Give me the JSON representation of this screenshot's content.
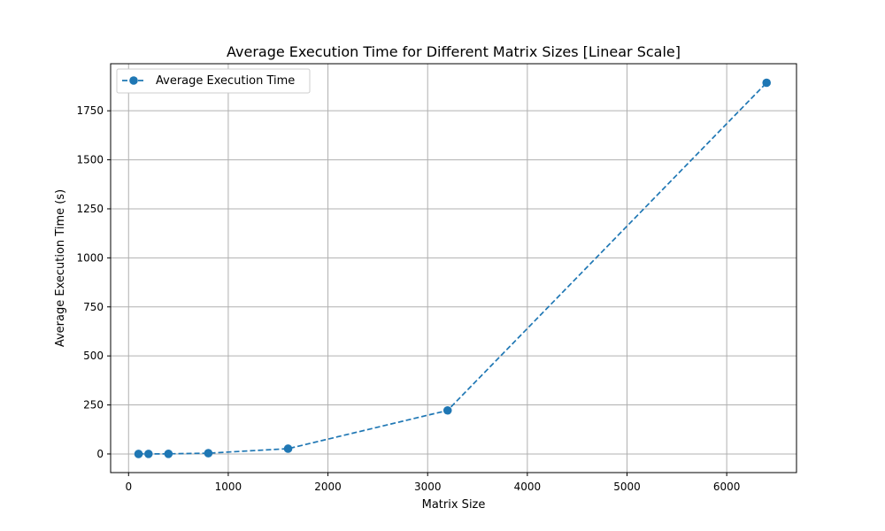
{
  "chart_data": {
    "type": "line",
    "title": "Average Execution Time for Different Matrix Sizes [Linear Scale]",
    "xlabel": "Matrix Size",
    "ylabel": "Average Execution Time (s)",
    "xlim": [
      -180,
      6700
    ],
    "ylim": [
      -95,
      1990
    ],
    "x_ticks": [
      0,
      1000,
      2000,
      3000,
      4000,
      5000,
      6000
    ],
    "y_ticks": [
      0,
      250,
      500,
      750,
      1000,
      1250,
      1500,
      1750
    ],
    "grid": true,
    "legend_position": "top-left",
    "series": [
      {
        "name": "Average Execution Time",
        "color": "#1f77b4",
        "line_style": "dashed",
        "marker": "circle",
        "x": [
          100,
          200,
          400,
          800,
          1600,
          3200,
          6400
        ],
        "y": [
          0.05,
          0.3,
          0.6,
          4,
          27,
          222,
          1893
        ]
      }
    ]
  }
}
